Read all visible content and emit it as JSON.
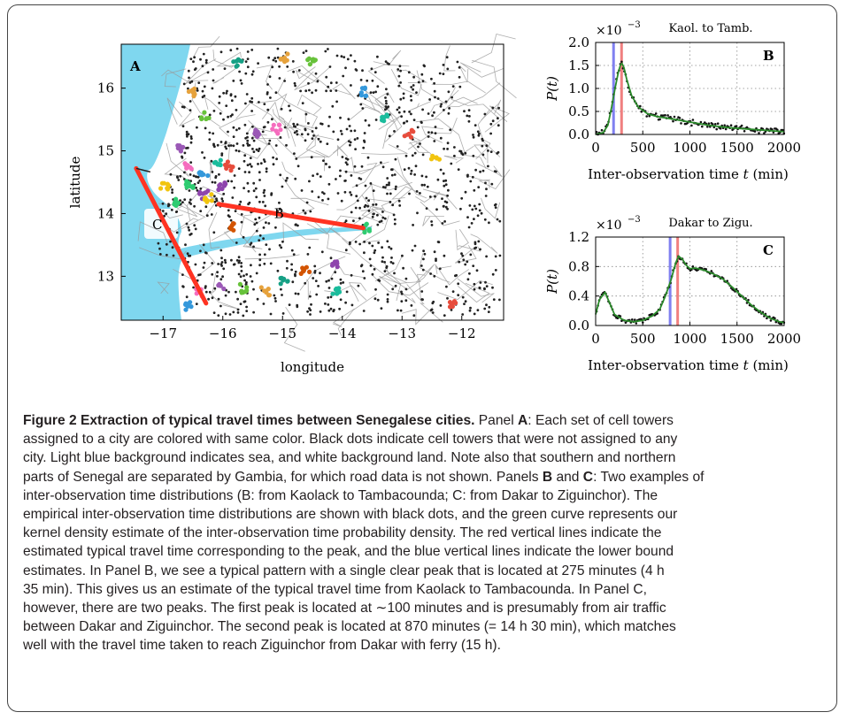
{
  "chart_data": [
    {
      "type": "map",
      "panel_label": "A",
      "xlabel": "longitude",
      "ylabel": "latitude",
      "xlim": [
        -17.7,
        -11.3
      ],
      "ylim": [
        12.3,
        16.7
      ],
      "xticks": [
        -17,
        -16,
        -15,
        -14,
        -13,
        -12
      ],
      "yticks": [
        13,
        14,
        15,
        16
      ],
      "xtick_labels": [
        "−17",
        "−16",
        "−15",
        "−14",
        "−13",
        "−12"
      ],
      "ytick_labels": [
        "13",
        "14",
        "15",
        "16"
      ],
      "route_labels": [
        "B",
        "C"
      ],
      "routes": [
        {
          "label": "B",
          "from_lon": -16.07,
          "from_lat": 14.15,
          "to_lon": -13.65,
          "to_lat": 13.77
        },
        {
          "label": "C",
          "from_lon": -17.45,
          "from_lat": 14.72,
          "to_lon": -16.28,
          "to_lat": 12.57
        }
      ],
      "colors": {
        "sea": "#7fd7ef",
        "route": "#ff3322",
        "roads": "#9a9a9a",
        "towers": "#222222"
      }
    },
    {
      "type": "line",
      "panel_label": "B",
      "title": "Kaol. to Tamb.",
      "scale_label": "×10",
      "scale_exponent": "−3",
      "ylabel": "P(t)",
      "xlabel_text": "Inter-observation time ",
      "xlabel_var": "t",
      "xlabel_unit": " (min)",
      "xlim": [
        0,
        2000
      ],
      "ylim": [
        0,
        2.0
      ],
      "xticks": [
        0,
        500,
        1000,
        1500,
        2000
      ],
      "yticks": [
        0,
        0.5,
        1.0,
        1.5,
        2.0
      ],
      "xtick_labels": [
        "0",
        "500",
        "1000",
        "1500",
        "2000"
      ],
      "ytick_labels": [
        "0.0",
        "0.5",
        "1.0",
        "1.5",
        "2.0"
      ],
      "red_line": 275,
      "blue_line": 190,
      "curve": {
        "x": [
          0,
          80,
          130,
          170,
          210,
          240,
          265,
          280,
          300,
          330,
          380,
          450,
          550,
          650,
          800,
          1000,
          1200,
          1400,
          1600,
          1800,
          2000
        ],
        "y": [
          0.0,
          0.04,
          0.2,
          0.6,
          1.05,
          1.35,
          1.52,
          1.54,
          1.45,
          1.2,
          0.85,
          0.6,
          0.45,
          0.39,
          0.34,
          0.27,
          0.2,
          0.15,
          0.12,
          0.09,
          0.06
        ]
      },
      "colors": {
        "curve": "#2a8a2a",
        "red": "#f08080",
        "blue": "#8080f0"
      }
    },
    {
      "type": "line",
      "panel_label": "C",
      "title": "Dakar to Zigu.",
      "scale_label": "×10",
      "scale_exponent": "−3",
      "ylabel": "P(t)",
      "xlabel_text": "Inter-observation time ",
      "xlabel_var": "t",
      "xlabel_unit": " (min)",
      "xlim": [
        0,
        2000
      ],
      "ylim": [
        0,
        1.2
      ],
      "xticks": [
        0,
        500,
        1000,
        1500,
        2000
      ],
      "yticks": [
        0,
        0.4,
        0.8,
        1.2
      ],
      "xtick_labels": [
        "0",
        "500",
        "1000",
        "1500",
        "2000"
      ],
      "ytick_labels": [
        "0.0",
        "0.4",
        "0.8",
        "1.2"
      ],
      "red_line": 870,
      "blue_line": 790,
      "curve": {
        "x": [
          0,
          40,
          100,
          150,
          200,
          300,
          400,
          500,
          600,
          680,
          740,
          800,
          850,
          880,
          920,
          960,
          1000,
          1060,
          1150,
          1250,
          1350,
          1450,
          1550,
          1650,
          1750,
          1850,
          1950,
          2000
        ],
        "y": [
          0.15,
          0.35,
          0.45,
          0.3,
          0.15,
          0.07,
          0.05,
          0.07,
          0.13,
          0.22,
          0.4,
          0.62,
          0.85,
          0.94,
          0.9,
          0.82,
          0.77,
          0.78,
          0.75,
          0.7,
          0.63,
          0.52,
          0.4,
          0.28,
          0.18,
          0.1,
          0.05,
          0.04
        ]
      },
      "colors": {
        "curve": "#2a8a2a",
        "red": "#f08080",
        "blue": "#8080f0"
      }
    }
  ],
  "caption": {
    "lines": [
      {
        "bold": "Figure 2  Extraction of typical travel times between Senegalese cities.",
        "rest": [
          " Panel ",
          {
            "b": "A"
          },
          ": Each set of cell towers"
        ]
      },
      {
        "text": "assigned to a city are colored with same color. Black dots indicate cell towers that were not assigned to any"
      },
      {
        "text": "city. Light blue background indicates sea, and white background land. Note also that southern and northern"
      },
      {
        "text": "parts of Senegal are separated by Gambia, for which road data is not shown. Panels "
      },
      {
        "text": "inter-observation time distributions (B: from Kaolack to Tambacounda; C: from Dakar to Ziguinchor). The"
      },
      {
        "text": "empirical inter-observation time distributions are shown with black dots, and the green curve represents our"
      },
      {
        "text": "kernel density estimate of the inter-observation time probability density. The red vertical lines indicate the"
      },
      {
        "text": "estimated typical travel time corresponding to the peak, and the blue vertical lines indicate the lower bound"
      },
      {
        "text": "estimates. In Panel B, we see a typical pattern with a single clear peak that is located at 275 minutes (4 h"
      },
      {
        "text": "35 min). This gives us an estimate of the typical travel time from Kaolack to Tambacounda. In Panel C,"
      },
      {
        "text": "however, there are two peaks. The first peak is located at ∼100 minutes and is presumably from air traffic"
      },
      {
        "text": "between Dakar and Ziguinchor. The second peak is located at 870 minutes (= 14 h 30 min), which matches"
      },
      {
        "text": "well with the travel time taken to reach Ziguinchor from Dakar with ferry (15 h)."
      }
    ],
    "l4_bold_b": "B",
    "l4_and": " and ",
    "l4_bold_c": "C",
    "l4_tail": ": Two examples of"
  }
}
